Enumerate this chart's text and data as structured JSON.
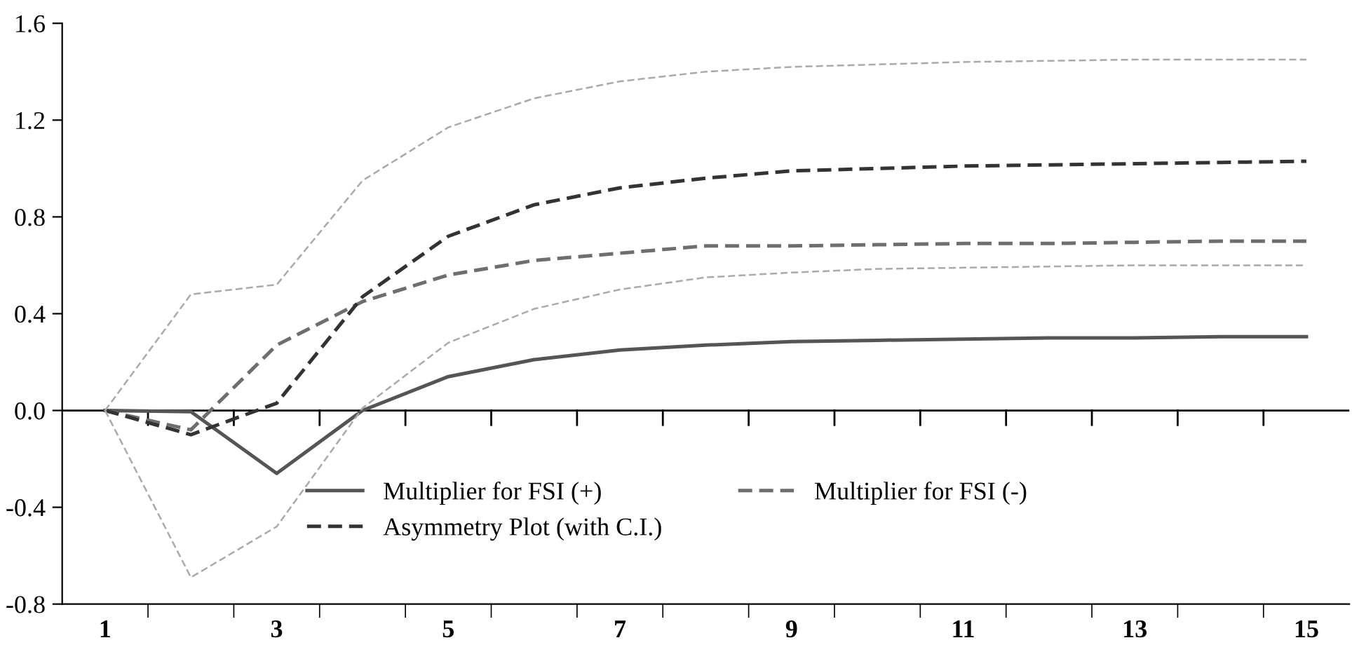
{
  "chart_data": {
    "type": "line",
    "categories": [
      "1",
      null,
      "3",
      null,
      "5",
      null,
      "7",
      null,
      "9",
      null,
      "11",
      null,
      "13",
      null,
      "15"
    ],
    "series": [
      {
        "name": "Multiplier for FSI (+)",
        "color": "#555555",
        "line_style": "solid",
        "values": [
          0,
          -0.005,
          -0.26,
          0,
          0.14,
          0.21,
          0.25,
          0.27,
          0.285,
          0.29,
          0.295,
          0.3,
          0.3,
          0.305,
          0.305
        ]
      },
      {
        "name": "Multiplier for FSI (-)",
        "color": "#6e6e6e",
        "line_style": "dashed",
        "values": [
          0,
          -0.08,
          0.27,
          0.45,
          0.56,
          0.62,
          0.65,
          0.68,
          0.68,
          0.685,
          0.69,
          0.69,
          0.695,
          0.7,
          0.7
        ]
      },
      {
        "name": "Asymmetry Plot (with C.I.)",
        "color": "#333333",
        "line_style": "dashed",
        "values": [
          0,
          -0.1,
          0.03,
          0.47,
          0.72,
          0.85,
          0.92,
          0.96,
          0.99,
          1.0,
          1.01,
          1.015,
          1.02,
          1.025,
          1.03
        ]
      },
      {
        "color": "#aaaaaa",
        "line_style": "dashed",
        "values": [
          0,
          0.48,
          0.52,
          0.95,
          1.17,
          1.29,
          1.36,
          1.4,
          1.42,
          1.43,
          1.44,
          1.445,
          1.45,
          1.45,
          1.45
        ]
      },
      {
        "color": "#aaaaaa",
        "line_style": "dashed",
        "values": [
          0,
          -0.69,
          -0.48,
          0.01,
          0.28,
          0.42,
          0.5,
          0.55,
          0.57,
          0.585,
          0.59,
          0.595,
          0.6,
          0.6,
          0.6
        ]
      }
    ],
    "ylim": [
      -0.8,
      1.6
    ],
    "yticks": [
      {
        "value": -0.8,
        "label": "-0.8"
      },
      {
        "value": -0.4,
        "label": "-0.4"
      },
      {
        "value": 0,
        "label": "0.0"
      },
      {
        "value": 0.4,
        "label": "0.4"
      },
      {
        "value": 0.8,
        "label": "0.8"
      },
      {
        "value": 1.2,
        "label": "1.2"
      },
      {
        "value": 1.6,
        "label": "1.6"
      }
    ],
    "ref_lines": [
      {
        "axis": "y",
        "value": 0,
        "color": "#000000"
      }
    ],
    "grid": false,
    "legend": "bottom",
    "marker": "none"
  }
}
